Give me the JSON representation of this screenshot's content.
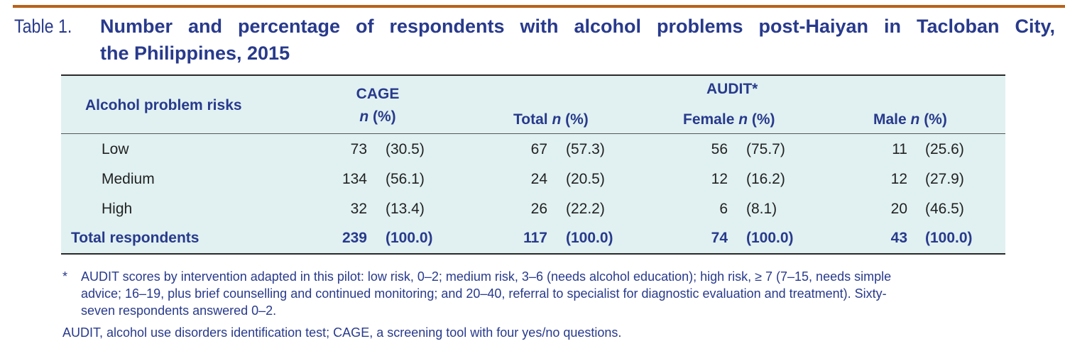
{
  "title": {
    "label": "Table 1.",
    "line1": "Number and percentage of respondents with alcohol problems post-Haiyan in Tacloban City,",
    "line2": "the Philippines, 2015"
  },
  "header": {
    "risk_col": "Alcohol problem risks",
    "cage": "CAGE",
    "cage_sub_n": "n",
    "cage_sub_pct": " (%)",
    "audit": "AUDIT*",
    "audit_total": "Total ",
    "audit_female": "Female ",
    "audit_male": "Male ",
    "n": "n",
    "pct": " (%)"
  },
  "rows": [
    {
      "label": "Low",
      "cage_n": "73",
      "cage_pct": "(30.5)",
      "total_n": "67",
      "total_pct": "(57.3)",
      "female_n": "56",
      "female_pct": "(75.7)",
      "male_n": "11",
      "male_pct": "(25.6)"
    },
    {
      "label": "Medium",
      "cage_n": "134",
      "cage_pct": "(56.1)",
      "total_n": "24",
      "total_pct": "(20.5)",
      "female_n": "12",
      "female_pct": "(16.2)",
      "male_n": "12",
      "male_pct": "(27.9)"
    },
    {
      "label": "High",
      "cage_n": "32",
      "cage_pct": "(13.4)",
      "total_n": "26",
      "total_pct": "(22.2)",
      "female_n": "6",
      "female_pct": "(8.1)",
      "male_n": "20",
      "male_pct": "(46.5)"
    }
  ],
  "total_row": {
    "label": "Total respondents",
    "cage_n": "239",
    "cage_pct": "(100.0)",
    "total_n": "117",
    "total_pct": "(100.0)",
    "female_n": "74",
    "female_pct": "(100.0)",
    "male_n": "43",
    "male_pct": "(100.0)"
  },
  "footnotes": {
    "star": "*",
    "note1_line1": "AUDIT scores by intervention adapted in this pilot: low risk, 0–2; medium risk, 3–6 (needs alcohol education); high risk, ≥ 7 (7–15, needs simple",
    "note1_line2": "advice; 16–19, plus brief counselling and continued monitoring; and 20–40, referral to specialist for diagnostic evaluation and treatment). Sixty-",
    "note1_line3": "seven respondents answered 0–2.",
    "note2": "AUDIT, alcohol use disorders identification test; CAGE, a screening tool with four yes/no questions."
  },
  "colors": {
    "accent_bar": "#b8621b",
    "title_blue": "#283a8c",
    "table_bg": "#e1f1f1"
  }
}
